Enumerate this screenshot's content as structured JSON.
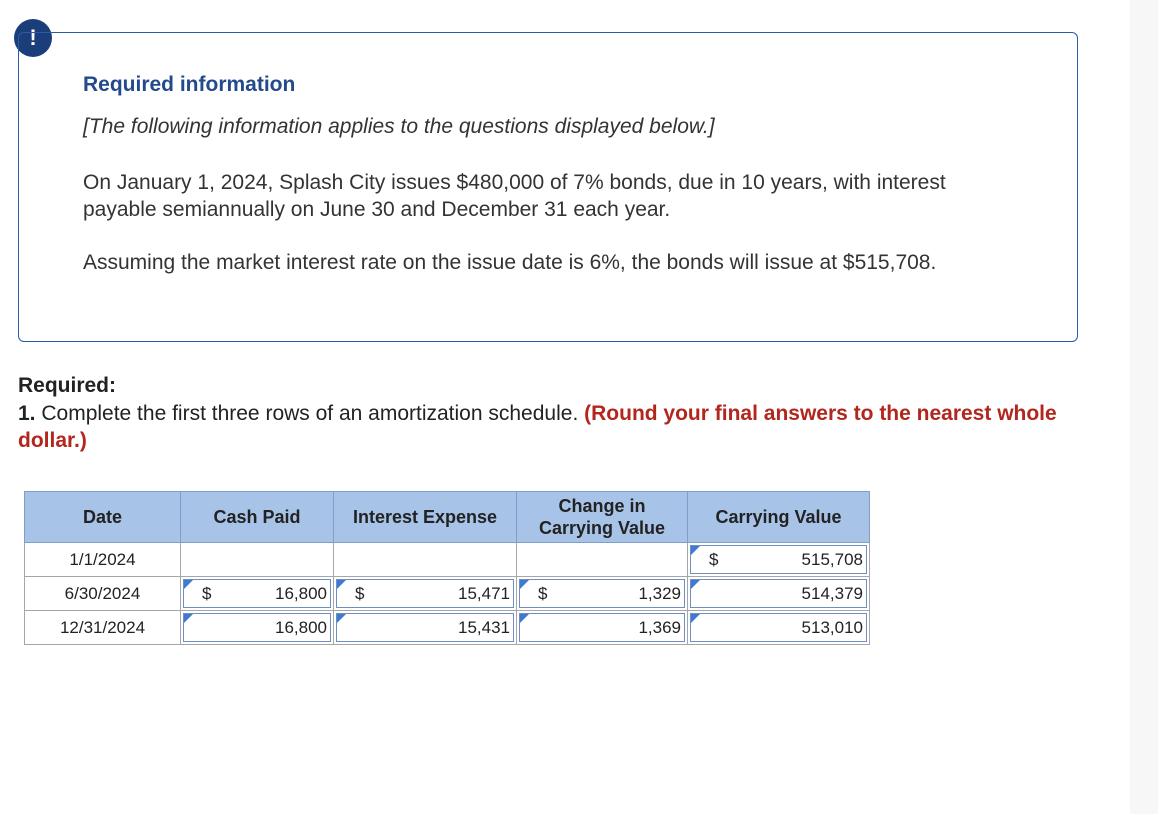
{
  "alert": {
    "symbol": "!"
  },
  "info": {
    "title": "Required information",
    "note": "[The following information applies to the questions displayed below.]",
    "paragraph1": "On January 1, 2024, Splash City issues $480,000 of 7% bonds, due in 10 years, with interest payable semiannually on June 30 and December 31 each year.",
    "paragraph2": "Assuming the market interest rate on the issue date is 6%, the bonds will issue at $515,708."
  },
  "required": {
    "heading": "Required:",
    "number": "1.",
    "question": " Complete the first three rows of an amortization schedule. ",
    "instruction": "(Round your final answers to the nearest whole dollar.)"
  },
  "table": {
    "headers": [
      "Date",
      "Cash Paid",
      "Interest Expense",
      "Change in Carrying Value",
      "Carrying Value"
    ],
    "rows": [
      {
        "date": "1/1/2024",
        "cash_paid": "",
        "interest_expense": "",
        "change": "",
        "carrying_value": "515,708"
      },
      {
        "date": "6/30/2024",
        "cash_paid": "16,800",
        "interest_expense": "15,471",
        "change": "1,329",
        "carrying_value": "514,379"
      },
      {
        "date": "12/31/2024",
        "cash_paid": "16,800",
        "interest_expense": "15,431",
        "change": "1,369",
        "carrying_value": "513,010"
      }
    ],
    "currency_symbol": "$"
  },
  "colors": {
    "header_bg": "#a7c4e8",
    "title_blue": "#234a8c",
    "instruction_red": "#b3261e"
  }
}
